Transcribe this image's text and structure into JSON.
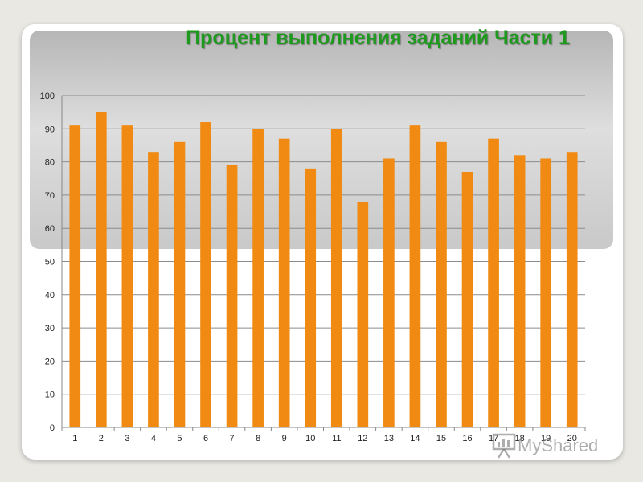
{
  "chart_data": {
    "type": "bar",
    "title": "Процент выполнения заданий Части 1",
    "xlabel": "",
    "ylabel": "",
    "categories": [
      "1",
      "2",
      "3",
      "4",
      "5",
      "6",
      "7",
      "8",
      "9",
      "10",
      "11",
      "12",
      "13",
      "14",
      "15",
      "16",
      "17",
      "18",
      "19",
      "20"
    ],
    "values": [
      91,
      95,
      91,
      83,
      86,
      92,
      79,
      90,
      87,
      78,
      90,
      68,
      81,
      91,
      86,
      77,
      87,
      82,
      81,
      83
    ],
    "ylim": [
      0,
      100
    ],
    "yticks": [
      0,
      10,
      20,
      30,
      40,
      50,
      60,
      70,
      80,
      90,
      100
    ],
    "grid": true,
    "legend": "none",
    "bar_color": "#f08a12"
  },
  "watermark": {
    "text": "MyShared",
    "icon": "presentation-board-icon"
  },
  "colors": {
    "title": "#1d9a1d",
    "header_band": "#c8c8c8",
    "background": "#e9e8e3"
  }
}
